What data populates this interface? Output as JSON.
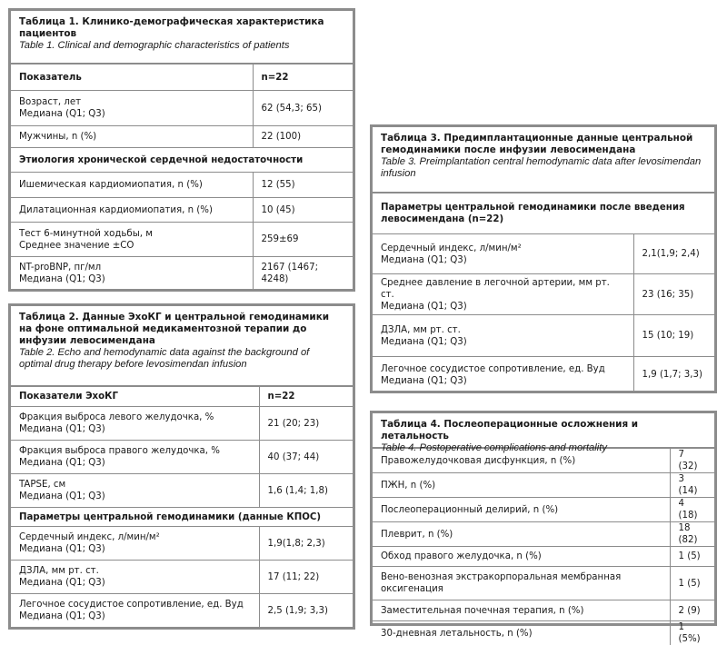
{
  "tables": [
    {
      "title_ru": "Таблица 1. Клинико-демографическая характеристика пациентов",
      "title_en": "Table 1. Clinical and demographic characteristics of patients",
      "rows": [
        {
          "type": "header",
          "label": "Показатель",
          "value": "n=22"
        },
        {
          "label": "Возраст, лет\nМедиана (Q1; Q3)",
          "value": "62 (54,3; 65)"
        },
        {
          "label": "Мужчины, n (%)",
          "value": "22 (100)"
        },
        {
          "type": "section",
          "label": "Этиология хронической сердечной недостаточности"
        },
        {
          "label": "Ишемическая кардиомиопатия, n (%)",
          "value": "12 (55)"
        },
        {
          "label": "Дилатационная кардиомиопатия, n (%)",
          "value": "10 (45)"
        },
        {
          "label": "Тест 6-минутной ходьбы, м\nСреднее значение ±СО",
          "value": "259±69"
        },
        {
          "label": "NT-proBNP, пг/мл\nМедиана (Q1; Q3)",
          "value": "2167 (1467; 4248)"
        }
      ]
    },
    {
      "title_ru": "Таблица 2. Данные ЭхоКГ и центральной гемодинамики на фоне оптимальной медикаментозной терапии до инфузии левосимендана",
      "title_en": "Table 2. Echo and hemodynamic data against the background of optimal drug therapy before levosimendan infusion",
      "rows": [
        {
          "type": "header",
          "label": "Показатели ЭхоКГ",
          "value": "n=22"
        },
        {
          "label": "Фракция выброса левого желудочка, %\nМедиана (Q1; Q3)",
          "value": "21 (20; 23)"
        },
        {
          "label": "Фракция выброса правого желудочка, %\nМедиана (Q1; Q3)",
          "value": "40 (37; 44)"
        },
        {
          "label": "TAPSE, см\nМедиана (Q1; Q3)",
          "value": "1,6 (1,4; 1,8)"
        },
        {
          "type": "section",
          "label": "Параметры центральной гемодинамики (данные КПОС)"
        },
        {
          "label": "Сердечный индекс, л/мин/м²\nМедиана (Q1; Q3)",
          "value": "1,9(1,8; 2,3)"
        },
        {
          "label": "ДЗЛА, мм рт. ст.\nМедиана (Q1; Q3)",
          "value": "17 (11; 22)"
        },
        {
          "label": "Легочное сосудистое сопротивление, ед. Вуд\nМедиана (Q1; Q3)",
          "value": "2,5 (1,9; 3,3)"
        }
      ]
    },
    {
      "title_ru": "Таблица 3. Предимплантационные данные центральной гемодинамики после инфузии левосимендана",
      "title_en": "Table 3. Preimplantation central hemodynamic data after levosimendan infusion",
      "rows": [
        {
          "type": "section",
          "label": "Параметры центральной гемодинамики после введения левосимендана (n=22)"
        },
        {
          "label": "Сердечный индекс, л/мин/м²\nМедиана (Q1; Q3)",
          "value": "2,1(1,9; 2,4)"
        },
        {
          "label": "Среднее давление в легочной артерии, мм рт. ст.\nМедиана (Q1; Q3)",
          "value": "23 (16; 35)"
        },
        {
          "label": "ДЗЛА, мм рт. ст.\nМедиана (Q1; Q3)",
          "value": "15 (10; 19)"
        },
        {
          "label": "Легочное сосудистое сопротивление, ед. Вуд\nМедиана (Q1; Q3)",
          "value": "1,9 (1,7; 3,3)"
        }
      ]
    },
    {
      "title_ru": "Таблица 4. Послеоперационные осложнения и летальность",
      "title_en": "Table 4. Postoperative complications and mortality",
      "rows": [
        {
          "label": "Правожелудочковая дисфункция, n (%)",
          "value": "7 (32)"
        },
        {
          "label": "ПЖН, n (%)",
          "value": "3 (14)"
        },
        {
          "label": "Послеоперационный делирий, n (%)",
          "value": "4 (18)"
        },
        {
          "label": "Плеврит, n (%)",
          "value": "18 (82)"
        },
        {
          "label": "Обход правого желудочка, n (%)",
          "value": "1 (5)"
        },
        {
          "label": "Вено-венозная экстракорпоральная мембранная оксигенация",
          "value": "1 (5)"
        },
        {
          "label": "Заместительная почечная терапия, n (%)",
          "value": "2 (9)"
        },
        {
          "label": "30-дневная летальность, n (%)",
          "value": "1 (5%)"
        }
      ]
    }
  ]
}
